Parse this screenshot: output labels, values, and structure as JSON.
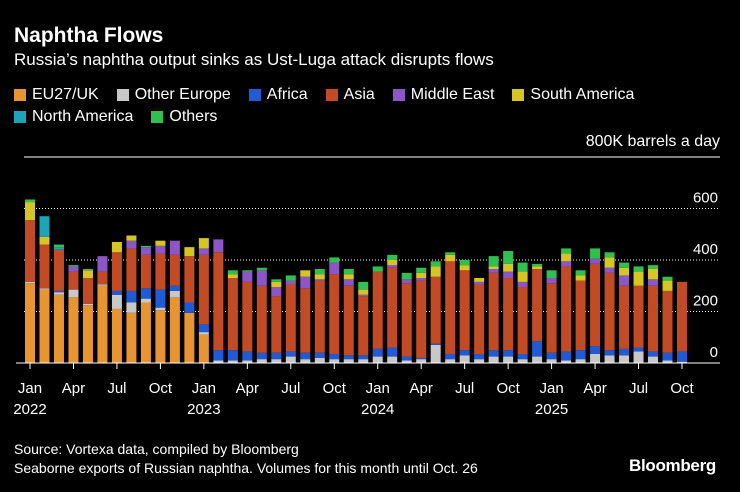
{
  "header": {
    "title": "Naphtha Flows",
    "subtitle": "Russia’s naphtha output sinks as Ust-Luga attack disrupts flows"
  },
  "legend": [
    {
      "name": "EU27/UK",
      "color": "#e8952f"
    },
    {
      "name": "Other Europe",
      "color": "#c8c8c8"
    },
    {
      "name": "Africa",
      "color": "#1f5bd6"
    },
    {
      "name": "Asia",
      "color": "#c44a24"
    },
    {
      "name": "Middle East",
      "color": "#8d55c8"
    },
    {
      "name": "South America",
      "color": "#d8c620"
    },
    {
      "name": "North America",
      "color": "#1ba6b8"
    },
    {
      "name": "Others",
      "color": "#2ec24c"
    }
  ],
  "footer": {
    "source_line1": "Source: Vortexa data, compiled by Bloomberg",
    "source_line2": "Seaborne exports of Russian naphtha. Volumes for this month until Oct. 26",
    "brand": "Bloomberg"
  },
  "chart_data": {
    "type": "bar",
    "stacked": true,
    "title": "Naphtha Flows",
    "subtitle": "Russia’s naphtha output sinks as Ust-Luga attack disrupts flows",
    "ylabel": "800K barrels a day",
    "y_tick_labels": [
      "0",
      "200",
      "400",
      "600"
    ],
    "y_ticks": [
      0,
      200,
      400,
      600
    ],
    "ylim": [
      0,
      800
    ],
    "x_tick_labels": [
      {
        "index": 0,
        "month": "Jan",
        "year": "2022"
      },
      {
        "index": 3,
        "month": "Apr",
        "year": ""
      },
      {
        "index": 6,
        "month": "Jul",
        "year": ""
      },
      {
        "index": 9,
        "month": "Oct",
        "year": ""
      },
      {
        "index": 12,
        "month": "Jan",
        "year": "2023"
      },
      {
        "index": 15,
        "month": "Apr",
        "year": ""
      },
      {
        "index": 18,
        "month": "Jul",
        "year": ""
      },
      {
        "index": 21,
        "month": "Oct",
        "year": ""
      },
      {
        "index": 24,
        "month": "Jan",
        "year": "2024"
      },
      {
        "index": 27,
        "month": "Apr",
        "year": ""
      },
      {
        "index": 30,
        "month": "Jul",
        "year": ""
      },
      {
        "index": 33,
        "month": "Oct",
        "year": ""
      },
      {
        "index": 36,
        "month": "Jan",
        "year": "2025"
      },
      {
        "index": 39,
        "month": "Apr",
        "year": ""
      },
      {
        "index": 42,
        "month": "Jul",
        "year": ""
      },
      {
        "index": 45,
        "month": "Oct",
        "year": ""
      }
    ],
    "categories": [
      "Jan 2022",
      "Feb 2022",
      "Mar 2022",
      "Apr 2022",
      "May 2022",
      "Jun 2022",
      "Jul 2022",
      "Aug 2022",
      "Sep 2022",
      "Oct 2022",
      "Nov 2022",
      "Dec 2022",
      "Jan 2023",
      "Feb 2023",
      "Mar 2023",
      "Apr 2023",
      "May 2023",
      "Jun 2023",
      "Jul 2023",
      "Aug 2023",
      "Sep 2023",
      "Oct 2023",
      "Nov 2023",
      "Dec 2023",
      "Jan 2024",
      "Feb 2024",
      "Mar 2024",
      "Apr 2024",
      "May 2024",
      "Jun 2024",
      "Jul 2024",
      "Aug 2024",
      "Sep 2024",
      "Oct 2024",
      "Nov 2024",
      "Dec 2024",
      "Jan 2025",
      "Feb 2025",
      "Mar 2025",
      "Apr 2025",
      "May 2025",
      "Jun 2025",
      "Jul 2025",
      "Aug 2025",
      "Sep 2025",
      "Oct 2025"
    ],
    "series": [
      {
        "name": "EU27/UK",
        "color": "#e8952f",
        "values": [
          310,
          285,
          265,
          255,
          225,
          300,
          210,
          195,
          235,
          205,
          255,
          195,
          110,
          0,
          0,
          0,
          0,
          0,
          0,
          0,
          0,
          0,
          0,
          0,
          0,
          0,
          0,
          0,
          0,
          0,
          0,
          0,
          0,
          0,
          0,
          0,
          0,
          0,
          0,
          0,
          0,
          0,
          0,
          0,
          0,
          0
        ]
      },
      {
        "name": "Other Europe",
        "color": "#c8c8c8",
        "values": [
          5,
          5,
          10,
          30,
          5,
          5,
          55,
          40,
          15,
          10,
          25,
          0,
          10,
          10,
          10,
          10,
          15,
          15,
          25,
          15,
          20,
          15,
          15,
          15,
          25,
          25,
          10,
          15,
          70,
          15,
          30,
          15,
          25,
          25,
          15,
          25,
          15,
          10,
          15,
          35,
          30,
          30,
          45,
          25,
          10,
          5
        ]
      },
      {
        "name": "Africa",
        "color": "#1f5bd6",
        "values": [
          0,
          0,
          5,
          0,
          0,
          0,
          15,
          45,
          40,
          70,
          20,
          40,
          30,
          40,
          40,
          35,
          25,
          25,
          20,
          25,
          20,
          20,
          15,
          15,
          30,
          35,
          15,
          5,
          5,
          20,
          20,
          20,
          25,
          25,
          20,
          60,
          25,
          35,
          35,
          30,
          20,
          25,
          15,
          20,
          30,
          40
        ]
      },
      {
        "name": "Asia",
        "color": "#c44a24",
        "values": [
          240,
          170,
          160,
          70,
          100,
          50,
          150,
          165,
          130,
          140,
          120,
          180,
          270,
          380,
          280,
          270,
          260,
          220,
          260,
          250,
          280,
          310,
          270,
          230,
          300,
          310,
          285,
          300,
          260,
          360,
          310,
          270,
          300,
          280,
          260,
          280,
          270,
          330,
          270,
          320,
          300,
          245,
          240,
          255,
          240,
          270
        ]
      },
      {
        "name": "Middle East",
        "color": "#8d55c8",
        "values": [
          0,
          0,
          0,
          20,
          0,
          60,
          0,
          30,
          30,
          30,
          55,
          0,
          25,
          50,
          0,
          40,
          60,
          35,
          15,
          45,
          5,
          45,
          25,
          5,
          0,
          10,
          15,
          10,
          0,
          0,
          0,
          10,
          15,
          25,
          20,
          0,
          20,
          20,
          0,
          20,
          20,
          40,
          0,
          25,
          0,
          0
        ]
      },
      {
        "name": "South America",
        "color": "#d8c620",
        "values": [
          70,
          30,
          0,
          0,
          30,
          0,
          40,
          20,
          0,
          20,
          0,
          35,
          40,
          0,
          15,
          0,
          0,
          20,
          0,
          25,
          20,
          0,
          20,
          20,
          0,
          20,
          0,
          20,
          40,
          25,
          20,
          15,
          10,
          30,
          40,
          10,
          0,
          30,
          20,
          0,
          40,
          30,
          55,
          40,
          40,
          0
        ]
      },
      {
        "name": "North America",
        "color": "#1ba6b8",
        "values": [
          0,
          80,
          10,
          0,
          0,
          0,
          0,
          0,
          0,
          0,
          0,
          0,
          0,
          0,
          0,
          0,
          0,
          0,
          0,
          0,
          0,
          0,
          0,
          0,
          0,
          0,
          0,
          0,
          0,
          0,
          0,
          0,
          0,
          0,
          0,
          0,
          0,
          0,
          0,
          0,
          0,
          0,
          0,
          0,
          0,
          0
        ]
      },
      {
        "name": "Others",
        "color": "#2ec24c",
        "values": [
          10,
          0,
          10,
          5,
          5,
          0,
          0,
          0,
          5,
          0,
          0,
          0,
          0,
          0,
          15,
          5,
          10,
          10,
          20,
          0,
          20,
          20,
          20,
          30,
          20,
          20,
          25,
          20,
          20,
          10,
          20,
          0,
          40,
          50,
          35,
          10,
          30,
          20,
          20,
          40,
          20,
          20,
          20,
          15,
          15,
          0
        ]
      }
    ]
  }
}
